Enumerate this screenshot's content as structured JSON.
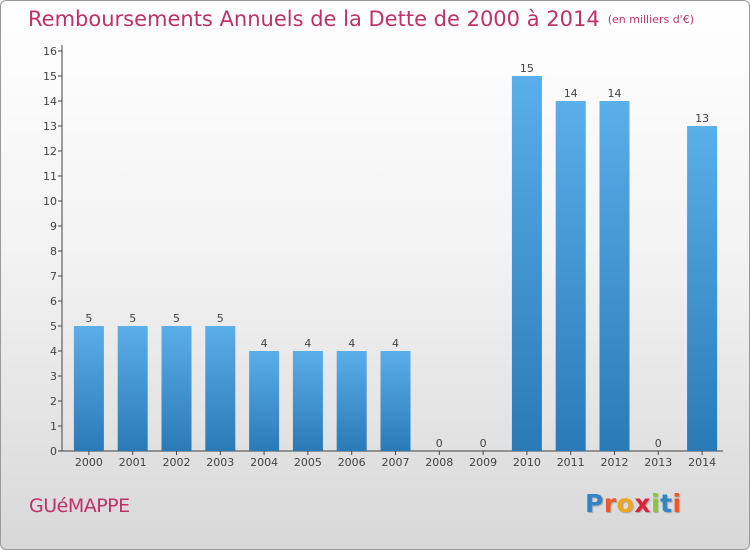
{
  "header": {
    "title": "Remboursements Annuels de la Dette de 2000 à 2014",
    "unit": "(en milliers d'€)"
  },
  "footer": {
    "commune": "GUéMAPPE",
    "logo_letters": [
      "P",
      "r",
      "o",
      "x",
      "i",
      "t",
      "i"
    ]
  },
  "colors": {
    "title": "#c0306a",
    "bar_top": "#5aaeea",
    "bar_bottom": "#2b7ab8",
    "axis": "#444444",
    "label": "#444444"
  },
  "chart_data": {
    "type": "bar",
    "title": "Remboursements Annuels de la Dette de 2000 à 2014",
    "xlabel": "",
    "ylabel": "",
    "ylim": [
      0,
      16
    ],
    "yticks": [
      0,
      1,
      2,
      3,
      4,
      5,
      6,
      7,
      8,
      9,
      10,
      11,
      12,
      13,
      14,
      15,
      16
    ],
    "grid": false,
    "categories": [
      "2000",
      "2001",
      "2002",
      "2003",
      "2004",
      "2005",
      "2006",
      "2007",
      "2008",
      "2009",
      "2010",
      "2011",
      "2012",
      "2013",
      "2014"
    ],
    "values": [
      5,
      5,
      5,
      5,
      4,
      4,
      4,
      4,
      0,
      0,
      15,
      14,
      14,
      0,
      13
    ]
  }
}
